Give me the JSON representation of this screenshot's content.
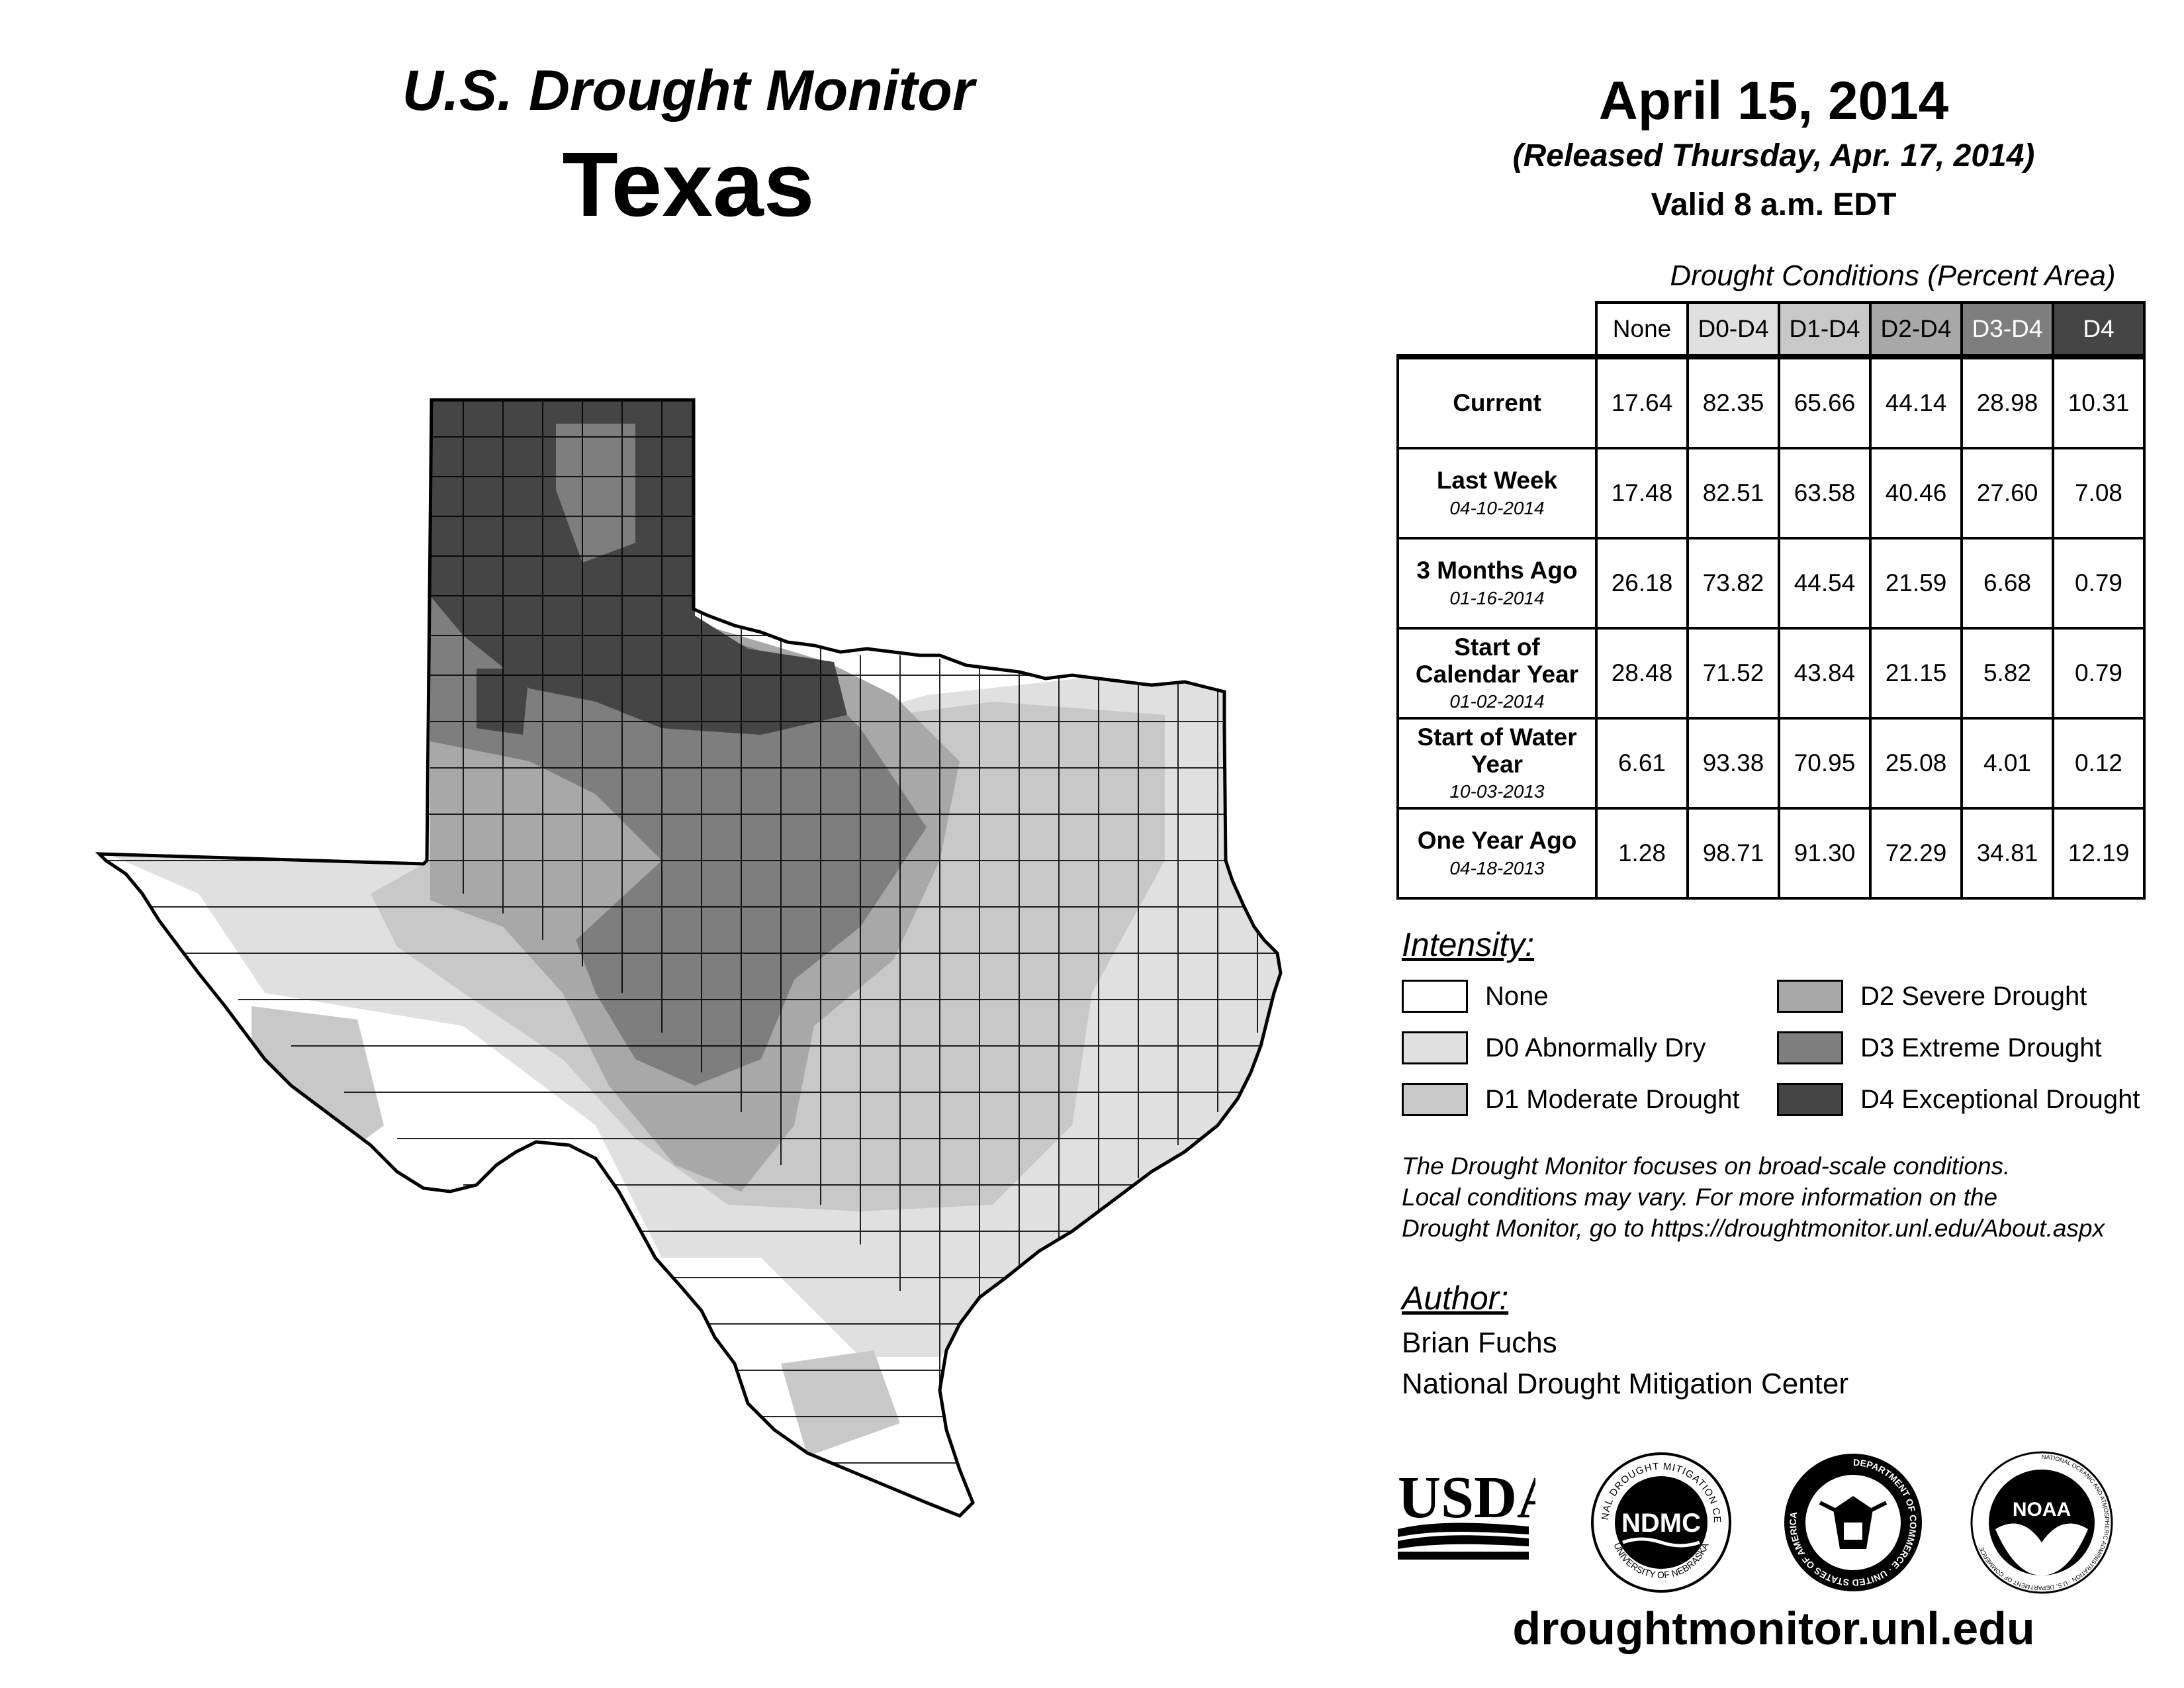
{
  "header": {
    "title": "U.S. Drought Monitor",
    "state": "Texas",
    "date": "April 15, 2014",
    "released": "(Released Thursday, Apr. 17, 2014)",
    "valid": "Valid 8 a.m. EDT"
  },
  "conditions": {
    "caption": "Drought Conditions (Percent Area)",
    "columns": [
      "None",
      "D0-D4",
      "D1-D4",
      "D2-D4",
      "D3-D4",
      "D4"
    ],
    "rows": [
      {
        "label": "Current",
        "date": "",
        "values": [
          "17.64",
          "82.35",
          "65.66",
          "44.14",
          "28.98",
          "10.31"
        ]
      },
      {
        "label": "Last Week",
        "date": "04-10-2014",
        "values": [
          "17.48",
          "82.51",
          "63.58",
          "40.46",
          "27.60",
          "7.08"
        ]
      },
      {
        "label": "3 Months Ago",
        "date": "01-16-2014",
        "values": [
          "26.18",
          "73.82",
          "44.54",
          "21.59",
          "6.68",
          "0.79"
        ]
      },
      {
        "label": "Start of Calendar Year",
        "date": "01-02-2014",
        "values": [
          "28.48",
          "71.52",
          "43.84",
          "21.15",
          "5.82",
          "0.79"
        ]
      },
      {
        "label": "Start of Water Year",
        "date": "10-03-2013",
        "values": [
          "6.61",
          "93.38",
          "70.95",
          "25.08",
          "4.01",
          "0.12"
        ]
      },
      {
        "label": "One Year Ago",
        "date": "04-18-2013",
        "values": [
          "1.28",
          "98.71",
          "91.30",
          "72.29",
          "34.81",
          "12.19"
        ]
      }
    ]
  },
  "legend": {
    "title": "Intensity:",
    "items": [
      {
        "label": "None",
        "color": "#ffffff"
      },
      {
        "label": "D0 Abnormally Dry",
        "color": "#e0e0e0"
      },
      {
        "label": "D1 Moderate Drought",
        "color": "#c8c8c8"
      },
      {
        "label": "D2 Severe Drought",
        "color": "#a8a8a8"
      },
      {
        "label": "D3 Extreme Drought",
        "color": "#7e7e7e"
      },
      {
        "label": "D4 Exceptional Drought",
        "color": "#454545"
      }
    ]
  },
  "note": {
    "line1": "The Drought Monitor focuses on broad-scale conditions.",
    "line2": "Local conditions may vary. For more information on the",
    "line3": "Drought Monitor, go to https://droughtmonitor.unl.edu/About.aspx"
  },
  "author": {
    "title": "Author:",
    "name": "Brian Fuchs",
    "org": "National Drought Mitigation Center"
  },
  "logos": {
    "usda": "USDA",
    "ndmc": "NDMC",
    "ndmc_ring_top": "NATIONAL DROUGHT MITIGATION CENTER",
    "ndmc_ring_bottom": "UNIVERSITY OF NEBRASKA",
    "doc_ring": "DEPARTMENT OF COMMERCE · UNITED STATES OF AMERICA",
    "noaa": "NOAA",
    "noaa_ring": "NATIONAL OCEANIC AND ATMOSPHERIC ADMINISTRATION · U.S. DEPARTMENT OF COMMERCE"
  },
  "url": "droughtmonitor.unl.edu"
}
